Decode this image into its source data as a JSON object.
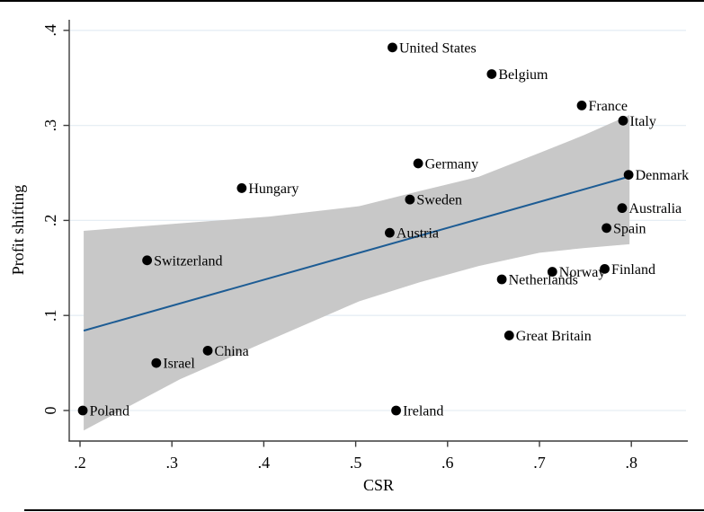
{
  "chart_data": {
    "type": "scatter",
    "title": "",
    "xlabel": "CSR",
    "ylabel": "Profit shifting",
    "xlim": [
      0.188,
      0.866
    ],
    "ylim": [
      -0.032,
      0.411
    ],
    "grid": "horizontal",
    "legend": "none",
    "x_ticks": [
      {
        "value": 0.2,
        "label": ".2"
      },
      {
        "value": 0.3,
        "label": ".3"
      },
      {
        "value": 0.4,
        "label": ".4"
      },
      {
        "value": 0.5,
        "label": ".5"
      },
      {
        "value": 0.6,
        "label": ".6"
      },
      {
        "value": 0.7,
        "label": ".7"
      },
      {
        "value": 0.8,
        "label": ".8"
      }
    ],
    "y_ticks": [
      {
        "value": 0.0,
        "label": "0"
      },
      {
        "value": 0.1,
        "label": ".1"
      },
      {
        "value": 0.2,
        "label": ".2"
      },
      {
        "value": 0.3,
        "label": ".3"
      },
      {
        "value": 0.4,
        "label": ".4"
      }
    ],
    "points": [
      {
        "label": "United States",
        "x": 0.54,
        "y": 0.382
      },
      {
        "label": "Belgium",
        "x": 0.648,
        "y": 0.354
      },
      {
        "label": "France",
        "x": 0.746,
        "y": 0.321
      },
      {
        "label": "Italy",
        "x": 0.791,
        "y": 0.305
      },
      {
        "label": "Germany",
        "x": 0.568,
        "y": 0.26
      },
      {
        "label": "Denmark",
        "x": 0.797,
        "y": 0.248
      },
      {
        "label": "Hungary",
        "x": 0.376,
        "y": 0.234
      },
      {
        "label": "Sweden",
        "x": 0.559,
        "y": 0.222
      },
      {
        "label": "Australia",
        "x": 0.79,
        "y": 0.213
      },
      {
        "label": "Spain",
        "x": 0.773,
        "y": 0.192
      },
      {
        "label": "Austria",
        "x": 0.537,
        "y": 0.187
      },
      {
        "label": "Switzerland",
        "x": 0.273,
        "y": 0.158
      },
      {
        "label": "Finland",
        "x": 0.771,
        "y": 0.149
      },
      {
        "label": "Norway",
        "x": 0.714,
        "y": 0.146
      },
      {
        "label": "Netherlands",
        "x": 0.659,
        "y": 0.138
      },
      {
        "label": "Great Britain",
        "x": 0.667,
        "y": 0.079
      },
      {
        "label": "China",
        "x": 0.339,
        "y": 0.063
      },
      {
        "label": "Israel",
        "x": 0.283,
        "y": 0.05
      },
      {
        "label": "Poland",
        "x": 0.203,
        "y": 0.0
      },
      {
        "label": "Ireland",
        "x": 0.544,
        "y": 0.0
      }
    ],
    "fit_line": {
      "name": "linear-fit",
      "x": [
        0.204,
        0.797
      ],
      "y": [
        0.084,
        0.246
      ]
    },
    "ci_band": {
      "name": "95%-confidence-band",
      "x": [
        0.204,
        0.309,
        0.406,
        0.504,
        0.57,
        0.634,
        0.7,
        0.749,
        0.798
      ],
      "upper": [
        0.189,
        0.197,
        0.204,
        0.215,
        0.231,
        0.246,
        0.271,
        0.29,
        0.311
      ],
      "lower": [
        -0.021,
        0.033,
        0.074,
        0.115,
        0.135,
        0.152,
        0.166,
        0.171,
        0.175
      ]
    },
    "colors": {
      "fit_line": "#1d5c94",
      "ci_band": "#c8c8c8",
      "gridline": "#e6eef4",
      "axis": "#3c3c3c",
      "marker": "#000000",
      "text": "#000000"
    }
  }
}
